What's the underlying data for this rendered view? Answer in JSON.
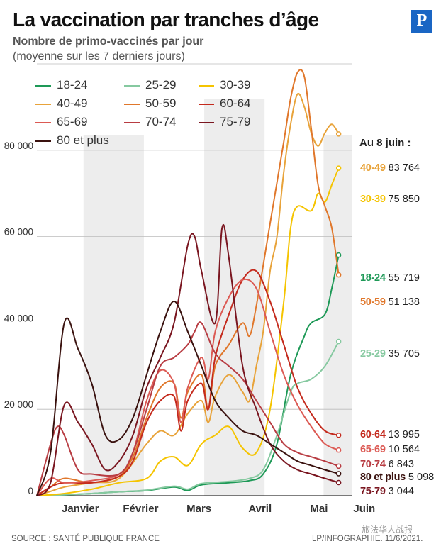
{
  "title": "La vaccination par tranches d’âge",
  "subtitle": "Nombre de primo-vaccinés par jour",
  "subtitle2": "(moyenne sur les 7 derniers jours)",
  "logo": "P",
  "end_header": "Au 8 juin :",
  "source": "SOURCE : SANTÉ PUBLIQUE FRANCE",
  "credit": "LP/INFOGRAPHIE.  11/6/2021.",
  "watermark": "旅法华人战报",
  "chart_data": {
    "type": "line",
    "ylim": [
      0,
      100000
    ],
    "yticks": [
      0,
      20000,
      40000,
      60000,
      80000
    ],
    "ytick_labels": [
      "0",
      "20 000",
      "40 000",
      "60 000",
      "80 000"
    ],
    "xlim": [
      0,
      23
    ],
    "months": [
      {
        "label": "Janvier",
        "x": 1.1
      },
      {
        "label": "Février",
        "x": 5.5
      },
      {
        "label": "Mars",
        "x": 9.75
      },
      {
        "label": "Avril",
        "x": 14.2
      },
      {
        "label": "Mai",
        "x": 18.5
      },
      {
        "label": "Juin",
        "x": 21.8
      }
    ],
    "series": [
      {
        "name": "18-24",
        "color": "#1e9957",
        "end_label": "55 719",
        "points": [
          [
            0,
            0
          ],
          [
            2,
            200
          ],
          [
            4,
            500
          ],
          [
            6,
            900
          ],
          [
            8,
            1200
          ],
          [
            10,
            2000
          ],
          [
            11,
            1200
          ],
          [
            12,
            2500
          ],
          [
            14,
            3000
          ],
          [
            15.5,
            3500
          ],
          [
            16.5,
            5000
          ],
          [
            17.5,
            12000
          ],
          [
            18.5,
            28000
          ],
          [
            19.5,
            37000
          ],
          [
            20,
            40000
          ],
          [
            21,
            42000
          ],
          [
            21.5,
            48000
          ],
          [
            22,
            55719
          ]
        ]
      },
      {
        "name": "25-29",
        "color": "#86c9a0",
        "end_label": "35 705",
        "points": [
          [
            0,
            0
          ],
          [
            2,
            200
          ],
          [
            4,
            500
          ],
          [
            6,
            900
          ],
          [
            8,
            1300
          ],
          [
            10,
            2200
          ],
          [
            11,
            1500
          ],
          [
            12,
            2800
          ],
          [
            14,
            3300
          ],
          [
            15.5,
            4000
          ],
          [
            16.5,
            6000
          ],
          [
            17.5,
            14000
          ],
          [
            18.5,
            24000
          ],
          [
            19,
            26000
          ],
          [
            20,
            27000
          ],
          [
            21,
            30000
          ],
          [
            22,
            35705
          ]
        ]
      },
      {
        "name": "30-39",
        "color": "#f5c400",
        "end_label": "75 850",
        "points": [
          [
            0,
            0
          ],
          [
            2,
            500
          ],
          [
            4,
            1500
          ],
          [
            6,
            3000
          ],
          [
            8,
            4000
          ],
          [
            9,
            8000
          ],
          [
            10,
            9000
          ],
          [
            11,
            7000
          ],
          [
            12,
            12000
          ],
          [
            13,
            14000
          ],
          [
            14,
            16000
          ],
          [
            15,
            11000
          ],
          [
            16,
            10000
          ],
          [
            17,
            20000
          ],
          [
            18,
            45000
          ],
          [
            18.5,
            62000
          ],
          [
            19,
            67000
          ],
          [
            20,
            66000
          ],
          [
            20.5,
            70000
          ],
          [
            21,
            68000
          ],
          [
            21.5,
            72000
          ],
          [
            22,
            75850
          ]
        ]
      },
      {
        "name": "40-49",
        "color": "#e8a33a",
        "end_label": "83 764",
        "points": [
          [
            0,
            0
          ],
          [
            1,
            1000
          ],
          [
            2,
            2000
          ],
          [
            4,
            3000
          ],
          [
            6,
            4000
          ],
          [
            8,
            12000
          ],
          [
            9,
            15000
          ],
          [
            10,
            14000
          ],
          [
            11,
            19000
          ],
          [
            12,
            22000
          ],
          [
            12.5,
            17000
          ],
          [
            13,
            23000
          ],
          [
            14,
            28000
          ],
          [
            15,
            24000
          ],
          [
            15.5,
            22000
          ],
          [
            16,
            30000
          ],
          [
            16.5,
            38000
          ],
          [
            17,
            52000
          ],
          [
            17.5,
            60000
          ],
          [
            18,
            75000
          ],
          [
            18.5,
            86000
          ],
          [
            19,
            93000
          ],
          [
            19.5,
            90000
          ],
          [
            20,
            84000
          ],
          [
            20.5,
            81000
          ],
          [
            21,
            84000
          ],
          [
            21.5,
            86000
          ],
          [
            22,
            83764
          ]
        ]
      },
      {
        "name": "50-59",
        "color": "#e0772b",
        "end_label": "51 138",
        "points": [
          [
            0,
            0
          ],
          [
            1,
            2000
          ],
          [
            2,
            4000
          ],
          [
            4,
            3000
          ],
          [
            6,
            4500
          ],
          [
            7,
            9000
          ],
          [
            8,
            18000
          ],
          [
            9,
            25000
          ],
          [
            10,
            26000
          ],
          [
            10.5,
            18000
          ],
          [
            11,
            24000
          ],
          [
            12,
            28000
          ],
          [
            12.5,
            20000
          ],
          [
            13,
            30000
          ],
          [
            14,
            35000
          ],
          [
            15,
            40000
          ],
          [
            15.5,
            37000
          ],
          [
            16,
            44000
          ],
          [
            17,
            63000
          ],
          [
            18,
            82000
          ],
          [
            18.5,
            92000
          ],
          [
            19,
            98000
          ],
          [
            19.5,
            97000
          ],
          [
            20,
            85000
          ],
          [
            20.5,
            72000
          ],
          [
            21,
            67000
          ],
          [
            21.5,
            62000
          ],
          [
            22,
            51138
          ]
        ]
      },
      {
        "name": "60-64",
        "color": "#c42a1d",
        "end_label": "13 995",
        "points": [
          [
            0,
            0
          ],
          [
            1,
            2000
          ],
          [
            2,
            3000
          ],
          [
            4,
            3000
          ],
          [
            6,
            4500
          ],
          [
            7,
            8000
          ],
          [
            8,
            17000
          ],
          [
            9,
            22000
          ],
          [
            10,
            23000
          ],
          [
            10.5,
            15000
          ],
          [
            11,
            22000
          ],
          [
            12,
            26000
          ],
          [
            12.5,
            20000
          ],
          [
            13,
            32000
          ],
          [
            14,
            42000
          ],
          [
            15,
            50000
          ],
          [
            16,
            52000
          ],
          [
            17,
            45000
          ],
          [
            18,
            35000
          ],
          [
            19,
            25000
          ],
          [
            20,
            19000
          ],
          [
            21,
            15000
          ],
          [
            22,
            13995
          ]
        ]
      },
      {
        "name": "65-69",
        "color": "#dc5a54",
        "end_label": "10 564",
        "points": [
          [
            0,
            0
          ],
          [
            1,
            4000
          ],
          [
            2,
            3000
          ],
          [
            4,
            3500
          ],
          [
            6,
            5000
          ],
          [
            7,
            10000
          ],
          [
            8,
            22000
          ],
          [
            9,
            29000
          ],
          [
            10,
            26000
          ],
          [
            10.5,
            17000
          ],
          [
            11,
            25000
          ],
          [
            12,
            32000
          ],
          [
            12.5,
            27000
          ],
          [
            13,
            38000
          ],
          [
            14,
            46000
          ],
          [
            15,
            50000
          ],
          [
            16,
            48000
          ],
          [
            17,
            38000
          ],
          [
            18,
            28000
          ],
          [
            19,
            21000
          ],
          [
            20,
            16000
          ],
          [
            21,
            12000
          ],
          [
            22,
            10564
          ]
        ]
      },
      {
        "name": "70-74",
        "color": "#b83c42",
        "end_label": "6 843",
        "points": [
          [
            0,
            0
          ],
          [
            1,
            12000
          ],
          [
            1.5,
            16000
          ],
          [
            2,
            14000
          ],
          [
            3,
            6000
          ],
          [
            4,
            5000
          ],
          [
            6,
            5000
          ],
          [
            7,
            10000
          ],
          [
            8,
            20000
          ],
          [
            9,
            30000
          ],
          [
            10,
            32000
          ],
          [
            11,
            35000
          ],
          [
            11.5,
            38000
          ],
          [
            12,
            40000
          ],
          [
            13,
            33000
          ],
          [
            14,
            30000
          ],
          [
            15,
            27000
          ],
          [
            16,
            22000
          ],
          [
            17,
            17000
          ],
          [
            18,
            12000
          ],
          [
            19,
            10000
          ],
          [
            20,
            9000
          ],
          [
            21,
            8000
          ],
          [
            22,
            6843
          ]
        ]
      },
      {
        "name": "75-79",
        "color": "#7a1620",
        "end_label": "3 044",
        "points": [
          [
            0,
            0
          ],
          [
            1,
            3000
          ],
          [
            2,
            21000
          ],
          [
            3,
            17000
          ],
          [
            4,
            12000
          ],
          [
            5,
            6000
          ],
          [
            6,
            8000
          ],
          [
            7,
            14000
          ],
          [
            8,
            25000
          ],
          [
            9,
            32000
          ],
          [
            10,
            40000
          ],
          [
            11,
            58000
          ],
          [
            11.5,
            60000
          ],
          [
            12,
            52000
          ],
          [
            13,
            40000
          ],
          [
            13.5,
            62000
          ],
          [
            14,
            55000
          ],
          [
            15,
            30000
          ],
          [
            16,
            20000
          ],
          [
            17,
            12000
          ],
          [
            18,
            8000
          ],
          [
            19,
            6000
          ],
          [
            20,
            5000
          ],
          [
            21,
            4000
          ],
          [
            22,
            3044
          ]
        ]
      },
      {
        "name": "80 et plus",
        "color": "#3a120f",
        "end_label": "5 098",
        "points": [
          [
            0,
            0
          ],
          [
            1,
            10000
          ],
          [
            2,
            40000
          ],
          [
            3,
            34000
          ],
          [
            4,
            26000
          ],
          [
            5,
            14000
          ],
          [
            6,
            13000
          ],
          [
            7,
            18000
          ],
          [
            8,
            28000
          ],
          [
            9,
            38000
          ],
          [
            10,
            45000
          ],
          [
            11,
            38000
          ],
          [
            12,
            30000
          ],
          [
            13,
            22000
          ],
          [
            14,
            18000
          ],
          [
            15,
            15000
          ],
          [
            16,
            14000
          ],
          [
            17,
            12000
          ],
          [
            18,
            10000
          ],
          [
            19,
            8000
          ],
          [
            20,
            7000
          ],
          [
            21,
            6000
          ],
          [
            22,
            5098
          ]
        ]
      }
    ],
    "end_labels_order": [
      "40-49",
      "30-39",
      "18-24",
      "50-59",
      "25-29",
      "60-64",
      "65-69",
      "70-74",
      "80 et plus",
      "75-79"
    ],
    "grid": true
  }
}
